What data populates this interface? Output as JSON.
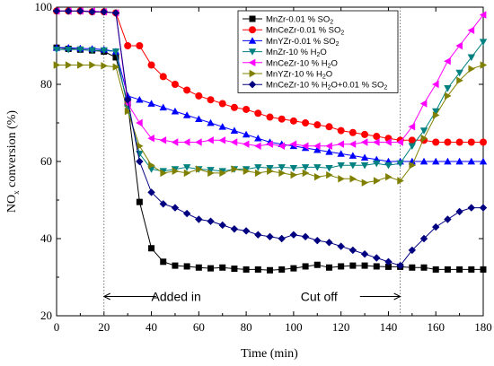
{
  "chart_data": {
    "type": "line",
    "xlabel": "Time (min)",
    "ylabel_main": "NO",
    "ylabel_sub": "x",
    "ylabel_rest": " conversion (%)",
    "xlim": [
      0,
      180
    ],
    "ylim": [
      20,
      100
    ],
    "xticks": [
      0,
      20,
      40,
      60,
      80,
      100,
      120,
      140,
      160,
      180
    ],
    "yticks": [
      20,
      40,
      60,
      80,
      100
    ],
    "grid": false,
    "legend_placement": "top-right",
    "annotations": [
      {
        "text": "Added in",
        "x": 20,
        "arrow_from": 42,
        "arrow_to": 20,
        "y": 25,
        "text_x": 40
      },
      {
        "text": "Cut off",
        "x": 145,
        "arrow_from": 128,
        "arrow_to": 145,
        "y": 25,
        "text_x": 103
      }
    ],
    "vlines": [
      20,
      145
    ],
    "series": [
      {
        "name": "MnZr-0.01 % SO",
        "name_sub": "2",
        "color": "#000000",
        "marker": "square",
        "x": [
          0,
          5,
          10,
          15,
          20,
          25,
          30,
          35,
          40,
          45,
          50,
          55,
          60,
          65,
          70,
          75,
          80,
          85,
          90,
          95,
          100,
          105,
          110,
          115,
          120,
          125,
          130,
          135,
          140,
          145,
          150,
          155,
          160,
          165,
          170,
          175,
          180
        ],
        "y": [
          89.5,
          89.2,
          89.0,
          88.8,
          88.5,
          87.0,
          75.0,
          49.5,
          37.5,
          34.0,
          33.0,
          32.8,
          32.5,
          32.3,
          32.5,
          32.2,
          32.0,
          32.0,
          31.8,
          32.0,
          32.3,
          32.8,
          33.2,
          32.5,
          32.8,
          33.0,
          33.0,
          32.8,
          32.7,
          32.7,
          32.5,
          32.5,
          32.0,
          32.0,
          32.0,
          32.0,
          32.0
        ]
      },
      {
        "name": "MnCeZr-0.01 % SO",
        "name_sub": "2",
        "color": "#ff0000",
        "marker": "circle",
        "x": [
          0,
          5,
          10,
          15,
          20,
          25,
          30,
          35,
          40,
          45,
          50,
          55,
          60,
          65,
          70,
          75,
          80,
          85,
          90,
          95,
          100,
          105,
          110,
          115,
          120,
          125,
          130,
          135,
          140,
          145,
          150,
          155,
          160,
          165,
          170,
          175,
          180
        ],
        "y": [
          99.0,
          99.0,
          99.0,
          98.8,
          98.8,
          98.5,
          90.0,
          90.0,
          85.0,
          82.0,
          80.0,
          78.5,
          77.0,
          76.0,
          75.0,
          74.0,
          73.5,
          72.5,
          71.5,
          71.0,
          70.5,
          70.0,
          69.5,
          69.0,
          68.0,
          67.5,
          67.0,
          66.5,
          66.0,
          65.5,
          65.5,
          65.5,
          65.0,
          65.0,
          65.0,
          65.0,
          65.0
        ]
      },
      {
        "name": "MnYZr-0.01 % SO",
        "name_sub": "2",
        "color": "#0000ff",
        "marker": "triangle-up",
        "x": [
          0,
          5,
          10,
          15,
          20,
          25,
          30,
          35,
          40,
          45,
          50,
          55,
          60,
          65,
          70,
          75,
          80,
          85,
          90,
          95,
          100,
          105,
          110,
          115,
          120,
          125,
          130,
          135,
          140,
          145,
          150,
          155,
          160,
          165,
          170,
          175,
          180
        ],
        "y": [
          89.5,
          89.5,
          89.3,
          89.2,
          89.0,
          88.5,
          77.0,
          76.0,
          75.0,
          74.0,
          73.0,
          72.0,
          71.0,
          70.0,
          69.0,
          68.0,
          67.0,
          66.0,
          65.0,
          64.5,
          64.0,
          63.5,
          63.0,
          62.5,
          62.0,
          61.5,
          61.0,
          60.5,
          60.0,
          60.0,
          60.0,
          60.0,
          60.0,
          60.0,
          60.0,
          60.0,
          60.0
        ]
      },
      {
        "name": "MnZr-10 % H",
        "name_sub": "2",
        "name_tail": "O",
        "color": "#008080",
        "marker": "triangle-down",
        "x": [
          0,
          5,
          10,
          15,
          20,
          25,
          30,
          35,
          40,
          45,
          50,
          55,
          60,
          65,
          70,
          75,
          80,
          85,
          90,
          95,
          100,
          105,
          110,
          115,
          120,
          125,
          130,
          135,
          140,
          145,
          150,
          155,
          160,
          165,
          170,
          175,
          180
        ],
        "y": [
          89.0,
          89.0,
          89.0,
          88.8,
          88.8,
          88.5,
          74.0,
          62.0,
          58.0,
          57.5,
          58.0,
          58.5,
          58.0,
          57.8,
          57.5,
          58.0,
          58.0,
          58.5,
          58.3,
          58.5,
          58.3,
          58.5,
          58.5,
          58.3,
          59.0,
          59.0,
          59.0,
          59.5,
          59.0,
          59.5,
          64.0,
          68.0,
          73.0,
          79.0,
          83.0,
          87.0,
          91.0
        ]
      },
      {
        "name": "MnCeZr-10 % H",
        "name_sub": "2",
        "name_tail": "O",
        "color": "#ff00ff",
        "marker": "triangle-left",
        "x": [
          0,
          5,
          10,
          15,
          20,
          25,
          30,
          35,
          40,
          45,
          50,
          55,
          60,
          65,
          70,
          75,
          80,
          85,
          90,
          95,
          100,
          105,
          110,
          115,
          120,
          125,
          130,
          135,
          140,
          145,
          150,
          155,
          160,
          165,
          170,
          175,
          180
        ],
        "y": [
          99.0,
          99.0,
          99.0,
          99.0,
          98.8,
          98.5,
          75.0,
          70.0,
          66.0,
          65.5,
          65.0,
          65.0,
          65.0,
          65.5,
          65.5,
          65.0,
          64.5,
          64.0,
          64.5,
          64.0,
          64.5,
          64.0,
          64.0,
          64.0,
          64.5,
          64.5,
          65.0,
          65.0,
          65.0,
          65.0,
          69.0,
          75.0,
          80.0,
          86.0,
          90.0,
          94.0,
          98.0
        ]
      },
      {
        "name": "MnYZr-10 % H",
        "name_sub": "2",
        "name_tail": "O",
        "color": "#808000",
        "marker": "triangle-right",
        "x": [
          0,
          5,
          10,
          15,
          20,
          25,
          30,
          35,
          40,
          45,
          50,
          55,
          60,
          65,
          70,
          75,
          80,
          85,
          90,
          95,
          100,
          105,
          110,
          115,
          120,
          125,
          130,
          135,
          140,
          145,
          150,
          155,
          160,
          165,
          170,
          175,
          180
        ],
        "y": [
          85.0,
          85.0,
          85.0,
          85.0,
          84.8,
          84.5,
          73.0,
          64.0,
          59.0,
          57.0,
          57.5,
          57.0,
          58.0,
          57.0,
          57.0,
          58.0,
          57.5,
          57.0,
          57.5,
          57.0,
          56.5,
          57.0,
          56.0,
          56.5,
          55.5,
          55.5,
          54.5,
          55.0,
          56.0,
          55.0,
          59.0,
          66.0,
          72.0,
          77.0,
          81.0,
          84.0,
          85.0
        ]
      },
      {
        "name": "MnCeZr-10 % H",
        "name_sub": "2",
        "name_tail": "O+0.01 % SO",
        "name_sub2": "2",
        "color": "#000080",
        "marker": "diamond",
        "x": [
          0,
          5,
          10,
          15,
          20,
          25,
          30,
          35,
          40,
          45,
          50,
          55,
          60,
          65,
          70,
          75,
          80,
          85,
          90,
          95,
          100,
          105,
          110,
          115,
          120,
          125,
          130,
          135,
          140,
          145,
          150,
          155,
          160,
          165,
          170,
          175,
          180
        ],
        "y": [
          99.0,
          99.0,
          99.0,
          98.8,
          98.8,
          98.5,
          76.0,
          60.0,
          52.0,
          49.0,
          48.0,
          46.5,
          45.0,
          44.5,
          43.5,
          42.5,
          42.0,
          41.0,
          40.5,
          40.0,
          41.0,
          40.5,
          39.5,
          39.0,
          38.0,
          37.0,
          36.0,
          35.0,
          34.0,
          33.0,
          37.0,
          40.0,
          43.0,
          45.0,
          47.0,
          48.0,
          48.0
        ]
      }
    ]
  }
}
